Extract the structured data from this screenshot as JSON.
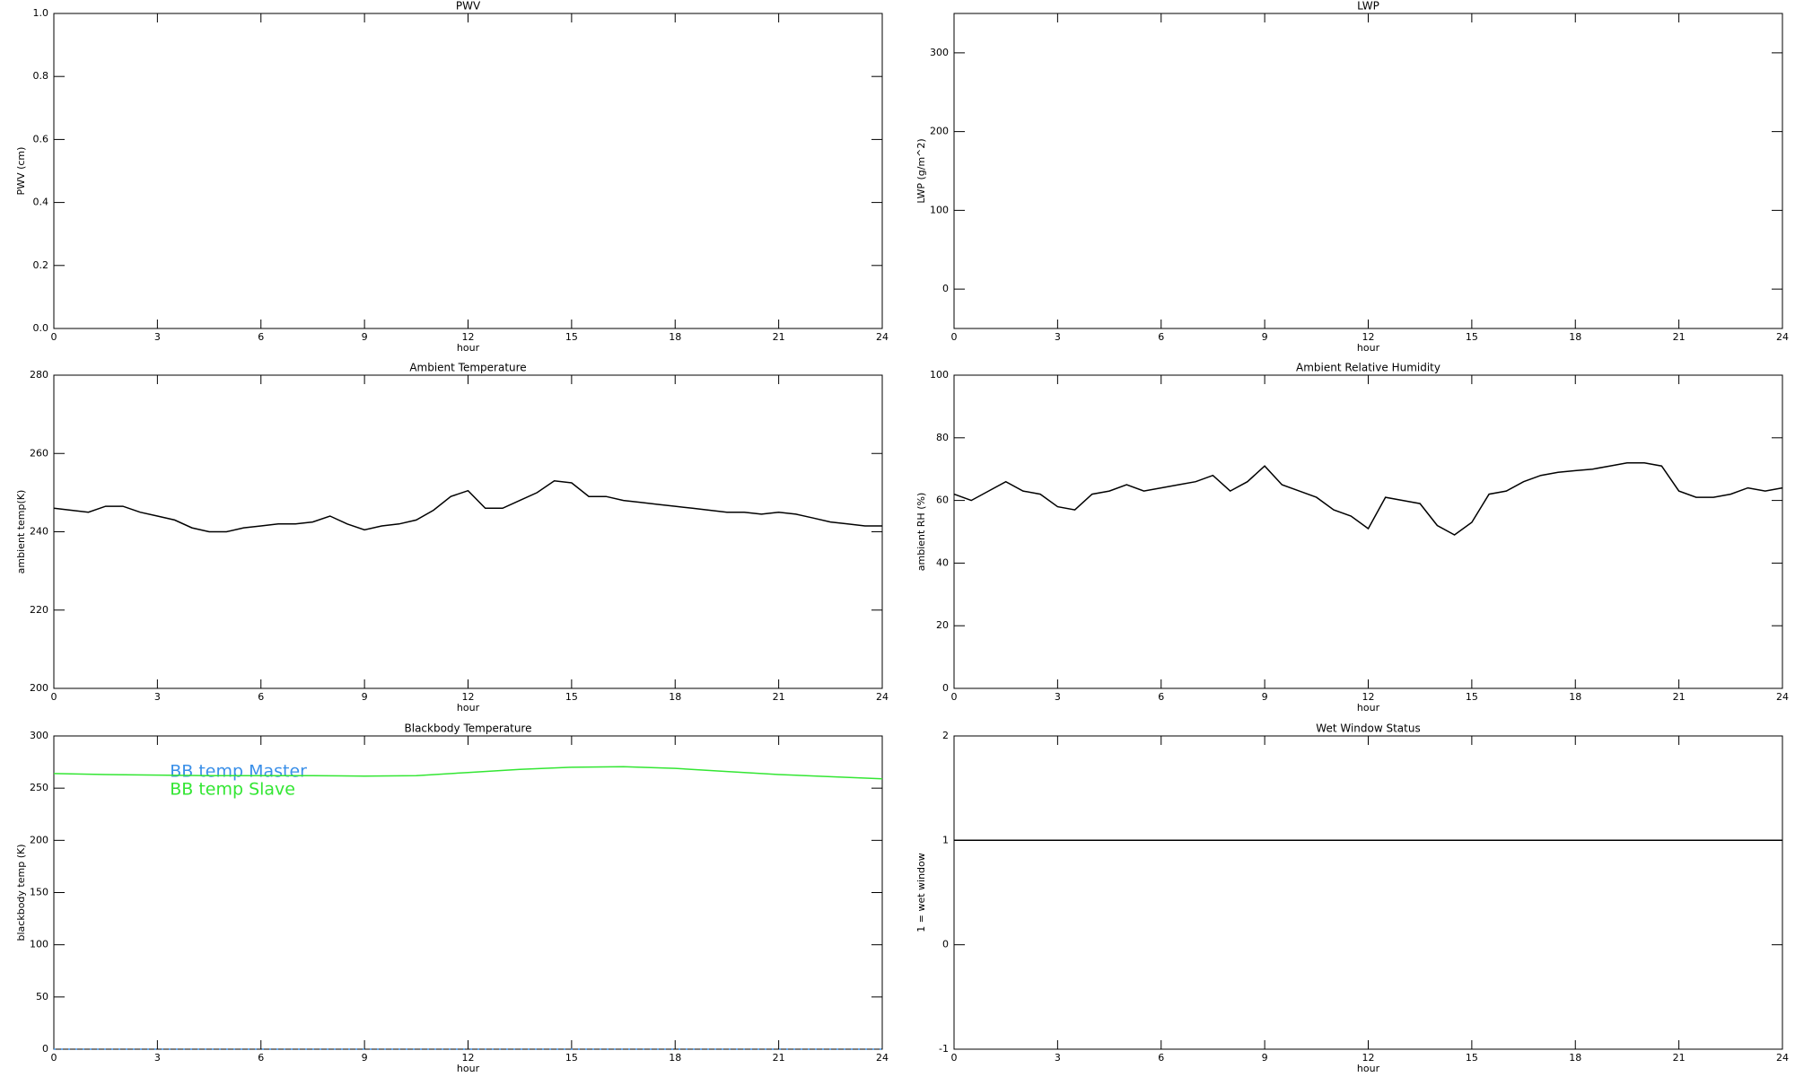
{
  "chart_data": [
    {
      "type": "line",
      "title": "PWV",
      "xlabel": "hour",
      "ylabel": "PWV (cm)",
      "xlim": [
        0,
        24
      ],
      "ylim": [
        0,
        1
      ],
      "xticks": [
        0,
        3,
        6,
        9,
        12,
        15,
        18,
        21,
        24
      ],
      "yticks": [
        {
          "value": 0,
          "label": "0.0"
        },
        {
          "value": 0.2,
          "label": "0.2"
        },
        {
          "value": 0.4,
          "label": "0.4"
        },
        {
          "value": 0.6,
          "label": "0.6"
        },
        {
          "value": 0.8,
          "label": "0.8"
        },
        {
          "value": 1,
          "label": "1.0"
        }
      ],
      "x": [],
      "series": []
    },
    {
      "type": "line",
      "title": "LWP",
      "xlabel": "hour",
      "ylabel": "LWP (g/m^2)",
      "xlim": [
        0,
        24
      ],
      "ylim": [
        -50,
        350
      ],
      "xticks": [
        0,
        3,
        6,
        9,
        12,
        15,
        18,
        21,
        24
      ],
      "yticks": [
        0,
        100,
        200,
        300
      ],
      "x": [],
      "series": []
    },
    {
      "type": "line",
      "title": "Ambient Temperature",
      "xlabel": "hour",
      "ylabel": "ambient temp(K)",
      "xlim": [
        0,
        24
      ],
      "ylim": [
        200,
        280
      ],
      "xticks": [
        0,
        3,
        6,
        9,
        12,
        15,
        18,
        21,
        24
      ],
      "yticks": [
        200,
        220,
        240,
        260,
        280
      ],
      "x": [
        0,
        0.5,
        1,
        1.5,
        2,
        2.5,
        3,
        3.5,
        4,
        4.5,
        5,
        5.5,
        6,
        6.5,
        7,
        7.5,
        8,
        8.5,
        9,
        9.5,
        10,
        10.5,
        11,
        11.5,
        12,
        12.5,
        13,
        13.5,
        14,
        14.5,
        15,
        15.5,
        16,
        16.5,
        17,
        17.5,
        18,
        18.5,
        19,
        19.5,
        20,
        20.5,
        21,
        21.5,
        22,
        22.5,
        23,
        23.5,
        24
      ],
      "series": [
        {
          "color": "#000000",
          "values": [
            246,
            245.5,
            245,
            246.5,
            246.5,
            245,
            244,
            243,
            241,
            240,
            240,
            241,
            241.5,
            242,
            242,
            242.5,
            244,
            242,
            240.5,
            241.5,
            242,
            243,
            245.5,
            249,
            250.5,
            246,
            246,
            248,
            250,
            253,
            252.5,
            249,
            249,
            248,
            247.5,
            247,
            246.5,
            246,
            245.5,
            245,
            245,
            244.5,
            245,
            244.5,
            243.5,
            242.5,
            242,
            241.5,
            241.5
          ]
        }
      ]
    },
    {
      "type": "line",
      "title": "Ambient Relative Humidity",
      "xlabel": "hour",
      "ylabel": "ambient RH (%)",
      "xlim": [
        0,
        24
      ],
      "ylim": [
        0,
        100
      ],
      "xticks": [
        0,
        3,
        6,
        9,
        12,
        15,
        18,
        21,
        24
      ],
      "yticks": [
        0,
        20,
        40,
        60,
        80,
        100
      ],
      "x": [
        0,
        0.5,
        1,
        1.5,
        2,
        2.5,
        3,
        3.5,
        4,
        4.5,
        5,
        5.5,
        6,
        6.5,
        7,
        7.5,
        8,
        8.5,
        9,
        9.5,
        10,
        10.5,
        11,
        11.5,
        12,
        12.5,
        13,
        13.5,
        14,
        14.5,
        15,
        15.5,
        16,
        16.5,
        17,
        17.5,
        18,
        18.5,
        19,
        19.5,
        20,
        20.5,
        21,
        21.5,
        22,
        22.5,
        23,
        23.5,
        24
      ],
      "series": [
        {
          "color": "#000000",
          "values": [
            62,
            60,
            63,
            66,
            63,
            62,
            58,
            57,
            62,
            63,
            65,
            63,
            64,
            65,
            66,
            68,
            63,
            66,
            71,
            65,
            63,
            61,
            57,
            55,
            51,
            61,
            60,
            59,
            52,
            49,
            53,
            62,
            63,
            66,
            68,
            69,
            69.5,
            70,
            71,
            72,
            72,
            71,
            63,
            61,
            61,
            62,
            64,
            63,
            64
          ]
        }
      ]
    },
    {
      "type": "line",
      "title": "Blackbody Temperature",
      "xlabel": "hour",
      "ylabel": "blackbody temp (K)",
      "xlim": [
        0,
        24
      ],
      "ylim": [
        0,
        300
      ],
      "xticks": [
        0,
        3,
        6,
        9,
        12,
        15,
        18,
        21,
        24
      ],
      "yticks": [
        0,
        50,
        100,
        150,
        200,
        250,
        300
      ],
      "legend": "upper left",
      "x": [
        0,
        1.5,
        3,
        4.5,
        6,
        7.5,
        9,
        10.5,
        12,
        13.5,
        15,
        16.5,
        18,
        19.5,
        21,
        22.5,
        24
      ],
      "series": [
        {
          "name": "BB temp Master",
          "color": "#3a8fe8",
          "dash": "dotted",
          "values": [
            0,
            0,
            0,
            0,
            0,
            0,
            0,
            0,
            0,
            0,
            0,
            0,
            0,
            0,
            0,
            0,
            0
          ]
        },
        {
          "name": "BB temp Slave",
          "color": "#33e633",
          "values": [
            264,
            263,
            262.5,
            262,
            262,
            262,
            261.5,
            262,
            265,
            268,
            270,
            270.5,
            269,
            266,
            263,
            261,
            259
          ]
        }
      ]
    },
    {
      "type": "line",
      "title": "Wet Window Status",
      "xlabel": "hour",
      "ylabel": "1 = wet window",
      "xlim": [
        0,
        24
      ],
      "ylim": [
        -1,
        2
      ],
      "xticks": [
        0,
        3,
        6,
        9,
        12,
        15,
        18,
        21,
        24
      ],
      "yticks": [
        -1,
        0,
        1,
        2
      ],
      "x": [
        0,
        24
      ],
      "series": [
        {
          "color": "#000000",
          "values": [
            1,
            1
          ]
        }
      ]
    }
  ]
}
